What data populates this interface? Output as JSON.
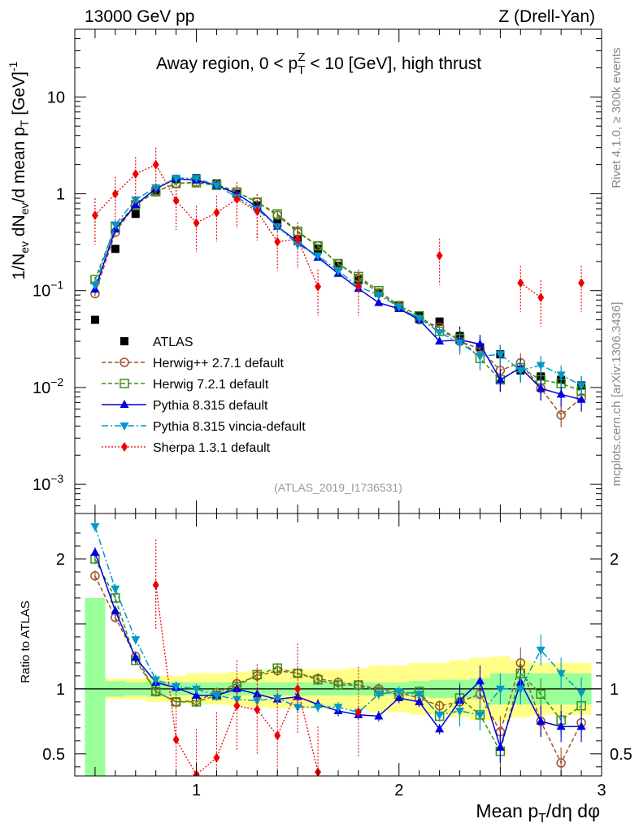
{
  "header": {
    "energy": "13000 GeV pp",
    "process": "Z (Drell-Yan)"
  },
  "side_text": {
    "rivet": "Rivet 4.1.0, ≥ 300k events",
    "mcplots": "mcplots.cern.ch [arXiv:1306.3436]"
  },
  "analysis_ref": "(ATLAS_2019_I1736531)",
  "colors": {
    "ATLAS": "#000000",
    "Herwig++": "#a0522d",
    "Herwig 7": "#3a8f1a",
    "Pythia": "#0000dd",
    "Vincia": "#0099cc",
    "Sherpa": "#ee0000",
    "band_inner": "#99ff99",
    "band_outer": "#ffff88"
  },
  "chart_data": [
    {
      "type": "line",
      "panel": "main",
      "title": "Away region, 0 < pT^Z < 10 [GeV], high thrust",
      "title_parts": {
        "a": "Away region, 0 < p",
        "sub": "T",
        "sup": "Z",
        "b": " < 10 [GeV], high thrust"
      },
      "ylabel": "1/N_ev dN_ev/d mean p_T [GeV]^-1",
      "ylabel_parts": {
        "t1": "1/N",
        "s1": "ev",
        "t2": " dN",
        "s2": "ev",
        "t3": "/d mean p",
        "s3": "T",
        "t4": " [GeV]",
        "sup": "-1"
      },
      "yscale": "log",
      "ylim": [
        0.0005,
        50
      ],
      "xlim": [
        0.4,
        3.0
      ],
      "y_tick_labels": [
        {
          "value": 10,
          "base": "10",
          "exp": ""
        },
        {
          "value": 1,
          "base": "1",
          "exp": ""
        },
        {
          "value": 0.1,
          "base": "10",
          "exp": "−1"
        },
        {
          "value": 0.01,
          "base": "10",
          "exp": "−2"
        },
        {
          "value": 0.001,
          "base": "10",
          "exp": "−3"
        }
      ],
      "x": [
        0.5,
        0.6,
        0.7,
        0.8,
        0.9,
        1.0,
        1.1,
        1.2,
        1.3,
        1.4,
        1.5,
        1.6,
        1.7,
        1.8,
        1.9,
        2.0,
        2.1,
        2.2,
        2.3,
        2.4,
        2.5,
        2.6,
        2.7,
        2.8,
        2.9
      ],
      "series": [
        {
          "name": "ATLAS",
          "label": "ATLAS",
          "marker": "square",
          "values": [
            0.05,
            0.27,
            0.62,
            1.08,
            1.42,
            1.45,
            1.28,
            1.0,
            0.76,
            0.5,
            0.34,
            0.27,
            0.18,
            0.13,
            0.095,
            0.07,
            0.055,
            0.048,
            0.034,
            0.026,
            0.022,
            0.015,
            0.013,
            0.012,
            0.0105
          ]
        },
        {
          "name": "Herwig++",
          "label": "Herwig++ 2.7.1 default",
          "marker": "circle-open",
          "values": [
            0.093,
            0.4,
            0.78,
            1.05,
            1.28,
            1.32,
            1.25,
            1.05,
            0.82,
            0.6,
            0.4,
            0.29,
            0.19,
            0.135,
            0.095,
            0.068,
            0.05,
            0.042,
            0.03,
            0.025,
            0.015,
            0.018,
            0.0098,
            0.0052,
            0.0078
          ]
        },
        {
          "name": "Herwig 7",
          "label": "Herwig 7.2.1 default",
          "marker": "square-open",
          "values": [
            0.13,
            0.46,
            0.77,
            1.05,
            1.28,
            1.3,
            1.22,
            1.04,
            0.82,
            0.62,
            0.41,
            0.29,
            0.19,
            0.14,
            0.1,
            0.07,
            0.055,
            0.038,
            0.032,
            0.02,
            0.012,
            0.016,
            0.012,
            0.011,
            0.0092
          ]
        },
        {
          "name": "Pythia",
          "label": "Pythia 8.315 default",
          "marker": "triangle-up",
          "values": [
            0.103,
            0.43,
            0.77,
            1.13,
            1.43,
            1.38,
            1.22,
            1.0,
            0.73,
            0.46,
            0.32,
            0.22,
            0.15,
            0.105,
            0.075,
            0.065,
            0.05,
            0.03,
            0.031,
            0.028,
            0.012,
            0.016,
            0.0098,
            0.0085,
            0.0075
          ]
        },
        {
          "name": "Vincia",
          "label": "Pythia 8.315 vincia-default",
          "marker": "triangle-down",
          "values": [
            0.115,
            0.48,
            0.87,
            1.16,
            1.45,
            1.45,
            1.22,
            0.92,
            0.69,
            0.46,
            0.3,
            0.23,
            0.16,
            0.11,
            0.09,
            0.068,
            0.052,
            0.037,
            0.029,
            0.021,
            0.022,
            0.015,
            0.017,
            0.0135,
            0.0105
          ]
        },
        {
          "name": "Sherpa",
          "label": "Sherpa 1.3.1 default",
          "marker": "diamond",
          "values": [
            0.6,
            1.0,
            1.6,
            2.0,
            0.85,
            0.5,
            0.64,
            0.88,
            0.66,
            0.32,
            0.34,
            0.11,
            null,
            0.11,
            null,
            null,
            null,
            0.23,
            null,
            null,
            null,
            0.12,
            0.085,
            null,
            0.12
          ]
        }
      ]
    },
    {
      "type": "line",
      "panel": "ratio",
      "ylabel": "Ratio to ATLAS",
      "xlabel": "Mean pT/dη dφ",
      "xlabel_parts": {
        "a": "Mean p",
        "sub": "T",
        "b": "/dη dφ"
      },
      "ylim": [
        0.33,
        2.35
      ],
      "xlim": [
        0.4,
        3.0
      ],
      "y_ticks": [
        0.5,
        1,
        2
      ],
      "y_tick_labels": [
        "0.5",
        "1",
        "2"
      ],
      "x_ticks": [
        1,
        2,
        3
      ],
      "x_tick_labels": [
        "1",
        "2",
        "3"
      ],
      "x": [
        0.5,
        0.6,
        0.7,
        0.8,
        0.9,
        1.0,
        1.1,
        1.2,
        1.3,
        1.4,
        1.5,
        1.6,
        1.7,
        1.8,
        1.9,
        2.0,
        2.1,
        2.2,
        2.3,
        2.4,
        2.5,
        2.6,
        2.7,
        2.8,
        2.9
      ],
      "band_inner_halfwidth": [
        0.7,
        0.06,
        0.05,
        0.06,
        0.05,
        0.05,
        0.05,
        0.05,
        0.05,
        0.05,
        0.05,
        0.05,
        0.05,
        0.05,
        0.05,
        0.05,
        0.06,
        0.07,
        0.07,
        0.08,
        0.12,
        0.12,
        0.12,
        0.12,
        0.12
      ],
      "band_outer_halfwidth": [
        0.7,
        0.08,
        0.08,
        0.1,
        0.1,
        0.12,
        0.12,
        0.13,
        0.14,
        0.15,
        0.15,
        0.15,
        0.15,
        0.16,
        0.18,
        0.18,
        0.2,
        0.2,
        0.22,
        0.24,
        0.25,
        0.22,
        0.2,
        0.2,
        0.2
      ],
      "series": [
        {
          "name": "Herwig++",
          "values": [
            1.87,
            1.55,
            1.25,
            0.98,
            0.9,
            0.91,
            0.97,
            1.04,
            1.1,
            1.14,
            1.12,
            1.08,
            1.05,
            1.03,
            1.0,
            0.97,
            0.93,
            0.87,
            0.9,
            0.96,
            0.67,
            1.2,
            0.75,
            0.43,
            0.74
          ]
        },
        {
          "name": "Herwig 7",
          "values": [
            2.0,
            1.7,
            1.22,
            0.98,
            0.9,
            0.9,
            0.95,
            1.02,
            1.11,
            1.16,
            1.12,
            1.07,
            1.03,
            1.03,
            0.98,
            0.96,
            0.98,
            0.79,
            0.93,
            0.8,
            0.52,
            1.12,
            0.96,
            0.76,
            0.87
          ]
        },
        {
          "name": "Pythia",
          "values": [
            2.05,
            1.6,
            1.24,
            1.05,
            1.01,
            0.95,
            0.95,
            1.0,
            0.96,
            0.92,
            0.94,
            0.88,
            0.83,
            0.8,
            0.79,
            0.93,
            0.9,
            0.69,
            0.91,
            1.06,
            0.55,
            1.05,
            0.75,
            0.71,
            0.71
          ]
        },
        {
          "name": "Vincia",
          "values": [
            2.25,
            1.77,
            1.38,
            1.07,
            1.02,
            1.0,
            0.95,
            0.92,
            0.91,
            0.93,
            0.86,
            0.86,
            0.86,
            0.82,
            0.96,
            0.98,
            0.96,
            0.8,
            0.83,
            0.8,
            1.0,
            1.0,
            1.3,
            1.12,
            0.97
          ]
        },
        {
          "name": "Sherpa",
          "values": [
            null,
            null,
            null,
            1.8,
            0.61,
            0.34,
            0.47,
            0.87,
            0.84,
            0.64,
            1.0,
            0.36,
            null,
            0.82,
            null,
            null,
            null,
            null,
            null,
            null,
            null,
            null,
            null,
            null,
            null
          ]
        }
      ]
    }
  ]
}
